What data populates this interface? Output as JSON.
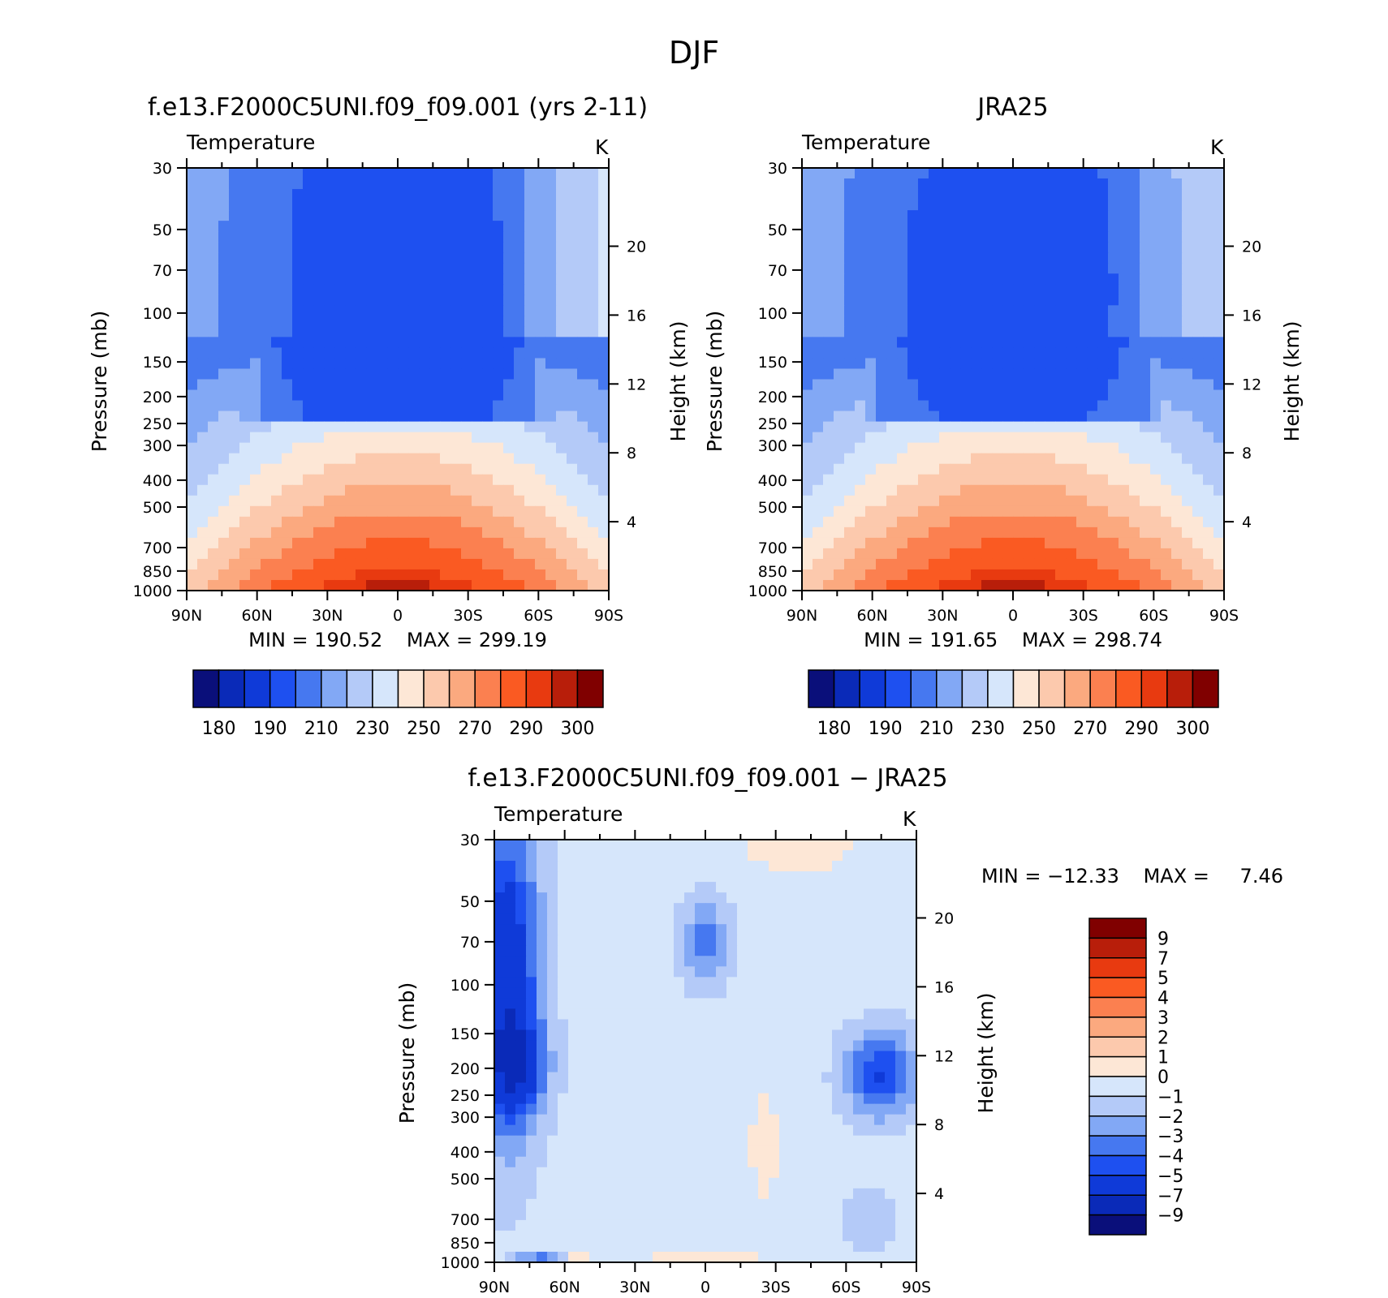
{
  "figure": {
    "title": "DJF"
  },
  "palettes": {
    "absolute": [
      "#0a0f7a",
      "#0a2ab8",
      "#0f3ad8",
      "#1e50f0",
      "#4678f0",
      "#82a8f5",
      "#b4caf8",
      "#d6e6fb",
      "#fde7d6",
      "#fcc9ad",
      "#fba97f",
      "#fb8050",
      "#fa5a22",
      "#e83a10",
      "#b81e0a",
      "#800000"
    ],
    "difference": [
      "#0a0f7a",
      "#0a2ab8",
      "#0f3ad8",
      "#1e50f0",
      "#4678f0",
      "#82a8f5",
      "#b4caf8",
      "#d6e6fb",
      "#fde7d6",
      "#fcc9ad",
      "#fba97f",
      "#fb8050",
      "#fa5a22",
      "#e83a10",
      "#b81e0a",
      "#800000"
    ]
  },
  "chart_data": [
    {
      "type": "heatmap",
      "id": "model",
      "title": "f.e13.F2000C5UNI.f09_f09.001 (yrs 2-11)",
      "subtitle_left": "Temperature",
      "subtitle_right": "K",
      "xlabel": "",
      "ylabel": "Pressure (mb)",
      "ylabel_right": "Height (km)",
      "x_ticks": [
        "90N",
        "60N",
        "30N",
        "0",
        "30S",
        "60S",
        "90S"
      ],
      "y_ticks": [
        30,
        50,
        70,
        100,
        150,
        200,
        250,
        300,
        400,
        500,
        700,
        850,
        1000
      ],
      "y_ticks_right": [
        20,
        16,
        12,
        8,
        4
      ],
      "stats": {
        "min_label": "MIN =",
        "min": "190.52",
        "max_label": "MAX =",
        "max": "299.19"
      },
      "colorbar": {
        "labels": [
          "180",
          "190",
          "210",
          "230",
          "250",
          "270",
          "290",
          "300"
        ]
      },
      "field": {
        "t_surface": 298,
        "t_trop_min": 193,
        "pole_n_stratos": 212,
        "pole_s_stratos": 232
      }
    },
    {
      "type": "heatmap",
      "id": "obs",
      "title": "JRA25",
      "subtitle_left": "Temperature",
      "subtitle_right": "K",
      "xlabel": "",
      "ylabel": "Pressure (mb)",
      "ylabel_right": "Height (km)",
      "x_ticks": [
        "90N",
        "60N",
        "30N",
        "0",
        "30S",
        "60S",
        "90S"
      ],
      "y_ticks": [
        30,
        50,
        70,
        100,
        150,
        200,
        250,
        300,
        400,
        500,
        700,
        850,
        1000
      ],
      "y_ticks_right": [
        20,
        16,
        12,
        8,
        4
      ],
      "stats": {
        "min_label": "MIN =",
        "min": "191.65",
        "max_label": "MAX =",
        "max": "298.74"
      },
      "colorbar": {
        "labels": [
          "180",
          "190",
          "210",
          "230",
          "250",
          "270",
          "290",
          "300"
        ]
      },
      "field": {
        "t_surface": 298,
        "t_trop_min": 194,
        "pole_n_stratos": 212,
        "pole_s_stratos": 229
      }
    },
    {
      "type": "heatmap",
      "id": "diff",
      "title": "f.e13.F2000C5UNI.f09_f09.001 − JRA25",
      "subtitle_left": "Temperature",
      "subtitle_right": "K",
      "xlabel": "",
      "ylabel": "Pressure (mb)",
      "ylabel_right": "Height (km)",
      "x_ticks": [
        "90N",
        "60N",
        "30N",
        "0",
        "30S",
        "60S",
        "90S"
      ],
      "y_ticks": [
        30,
        50,
        70,
        100,
        150,
        200,
        250,
        300,
        400,
        500,
        700,
        850,
        1000
      ],
      "y_ticks_right": [
        20,
        16,
        12,
        8,
        4
      ],
      "stats": {
        "min_label": "MIN =",
        "min": "−12.33",
        "max_label": "MAX =",
        "max": "7.46"
      },
      "colorbar": {
        "labels": [
          "9",
          "7",
          "5",
          "4",
          "3",
          "2",
          "1",
          "0",
          "−1",
          "−2",
          "−3",
          "−4",
          "−5",
          "−7",
          "−9"
        ]
      },
      "field": {
        "min": -12.33,
        "max": 7.46
      }
    }
  ]
}
